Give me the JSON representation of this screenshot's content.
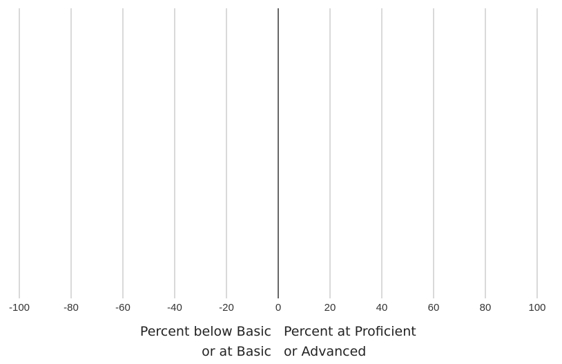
{
  "chart_data": {
    "type": "bar",
    "orientation": "horizontal-diverging",
    "title": "",
    "series": [],
    "xlim": [
      -100,
      100
    ],
    "xticks": [
      -100,
      -80,
      -60,
      -40,
      -20,
      0,
      20,
      40,
      60,
      80,
      100
    ],
    "xtick_labels": [
      "-100",
      "-80",
      "-60",
      "-40",
      "-20",
      "0",
      "20",
      "40",
      "60",
      "80",
      "100"
    ],
    "xlabel_left": [
      "Percent below Basic",
      "or at Basic"
    ],
    "xlabel_right": [
      "Percent at Proficient",
      "or Advanced"
    ],
    "grid": true,
    "legend": "none",
    "colors": {
      "grid": "#d9d9d9",
      "zero_line": "#333333",
      "text": "#333333"
    }
  }
}
